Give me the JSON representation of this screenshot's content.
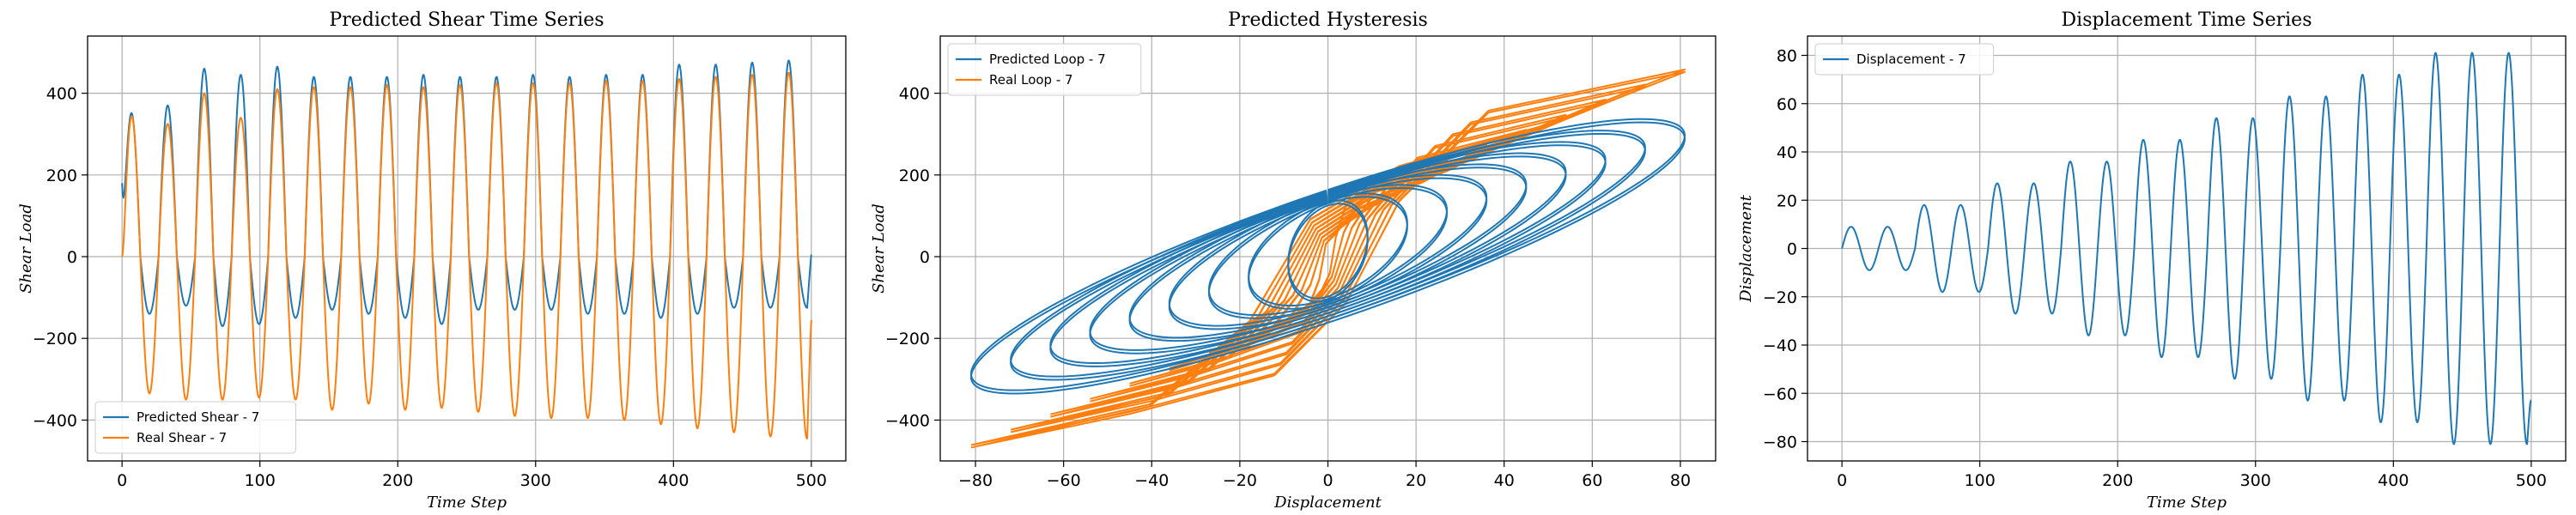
{
  "colors": {
    "predicted": "#1f77b4",
    "real": "#ff7f0e",
    "grid": "#b0b0b0"
  },
  "chart_data": [
    {
      "type": "line",
      "title": "Predicted Shear Time Series",
      "xlabel": "Time Step",
      "ylabel": "Shear Load",
      "xlim": [
        -25,
        525
      ],
      "ylim": [
        -500,
        540
      ],
      "xticks": [
        0,
        100,
        200,
        300,
        400,
        500
      ],
      "yticks": [
        -400,
        -200,
        0,
        200,
        400
      ],
      "grid": true,
      "legend_position": "lower-left",
      "x_range": [
        0,
        500
      ],
      "series": [
        {
          "name": "Predicted Shear - 7",
          "color_key": "predicted",
          "period_steps": 26.5,
          "peaks": [
            360,
            370,
            460,
            445,
            465,
            440,
            440,
            440,
            445,
            440,
            440,
            445,
            440,
            445,
            445,
            470,
            470,
            475,
            480
          ],
          "troughs": [
            -140,
            -120,
            -170,
            -165,
            -150,
            -130,
            -140,
            -150,
            -165,
            -130,
            -130,
            -130,
            -140,
            -140,
            -150,
            -140,
            -125,
            -125,
            -125
          ],
          "start_value": 180,
          "end_value": 5
        },
        {
          "name": "Real Shear - 7",
          "color_key": "real",
          "period_steps": 26.5,
          "peaks": [
            360,
            325,
            400,
            340,
            410,
            415,
            415,
            420,
            415,
            420,
            425,
            425,
            425,
            430,
            430,
            435,
            440,
            445,
            450
          ],
          "troughs": [
            -335,
            -350,
            -350,
            -345,
            -350,
            -375,
            -360,
            -375,
            -370,
            -380,
            -390,
            -395,
            -395,
            -400,
            -410,
            -420,
            -430,
            -440,
            -445
          ],
          "start_value": 0,
          "end_value": -155
        }
      ]
    },
    {
      "type": "line",
      "title": "Predicted Hysteresis",
      "xlabel": "Displacement",
      "ylabel": "Shear Load",
      "xlim": [
        -88,
        88
      ],
      "ylim": [
        -500,
        540
      ],
      "xticks": [
        -80,
        -60,
        -40,
        -20,
        0,
        20,
        40,
        60,
        80
      ],
      "yticks": [
        -400,
        -200,
        0,
        200,
        400
      ],
      "grid": true,
      "legend_position": "top-left",
      "series": [
        {
          "name": "Predicted Loop - 7",
          "color_key": "predicted"
        },
        {
          "name": "Real Loop - 7",
          "color_key": "real"
        }
      ]
    },
    {
      "type": "line",
      "title": "Displacement Time Series",
      "xlabel": "Time Step",
      "ylabel": "Displacement",
      "xlim": [
        -25,
        525
      ],
      "ylim": [
        -88,
        88
      ],
      "xticks": [
        0,
        100,
        200,
        300,
        400,
        500
      ],
      "yticks": [
        -80,
        -60,
        -40,
        -20,
        0,
        20,
        40,
        60,
        80
      ],
      "grid": true,
      "legend_position": "top-left",
      "x_range": [
        0,
        500
      ],
      "series": [
        {
          "name": "Displacement - 7",
          "color_key": "predicted",
          "period_steps": 26.5,
          "amplitude_levels": [
            9,
            9,
            18,
            18,
            27,
            27,
            36,
            36,
            45,
            45,
            54,
            54,
            63,
            63,
            72,
            72,
            81,
            81,
            81
          ],
          "end_value": -63
        }
      ]
    }
  ]
}
